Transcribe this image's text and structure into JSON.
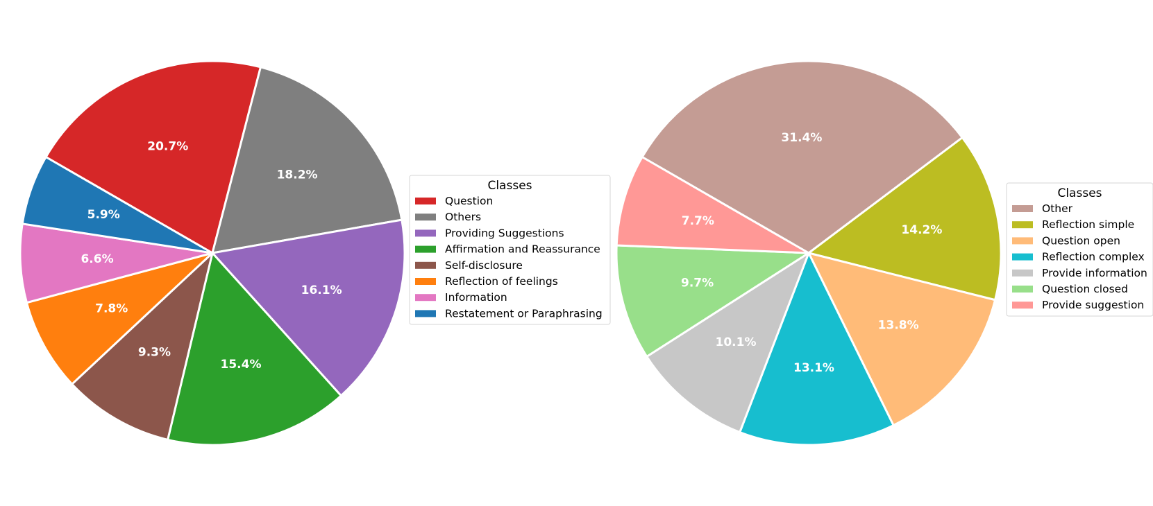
{
  "chart_data": [
    {
      "type": "pie",
      "legend_title": "Classes",
      "legend_position": "right",
      "start_angle_deg": 150,
      "direction": "clockwise",
      "slices": [
        {
          "label": "Question",
          "value": 20.7,
          "pct_label": "20.7%",
          "color": "#d62728"
        },
        {
          "label": "Others",
          "value": 18.2,
          "pct_label": "18.2%",
          "color": "#7f7f7f"
        },
        {
          "label": "Providing Suggestions",
          "value": 16.1,
          "pct_label": "16.1%",
          "color": "#9467bd"
        },
        {
          "label": "Affirmation and Reassurance",
          "value": 15.4,
          "pct_label": "15.4%",
          "color": "#2ca02c"
        },
        {
          "label": "Self-disclosure",
          "value": 9.3,
          "pct_label": "9.3%",
          "color": "#8c564b"
        },
        {
          "label": "Reflection of feelings",
          "value": 7.8,
          "pct_label": "7.8%",
          "color": "#ff7f0e"
        },
        {
          "label": "Information",
          "value": 6.6,
          "pct_label": "6.6%",
          "color": "#e377c2"
        },
        {
          "label": "Restatement or Paraphrasing",
          "value": 5.9,
          "pct_label": "5.9%",
          "color": "#1f77b4"
        }
      ]
    },
    {
      "type": "pie",
      "legend_title": "Classes",
      "legend_position": "right",
      "start_angle_deg": 150,
      "direction": "clockwise",
      "slices": [
        {
          "label": "Other",
          "value": 31.4,
          "pct_label": "31.4%",
          "color": "#c49c94"
        },
        {
          "label": "Reflection simple",
          "value": 14.2,
          "pct_label": "14.2%",
          "color": "#bcbd22"
        },
        {
          "label": "Question open",
          "value": 13.8,
          "pct_label": "13.8%",
          "color": "#ffbb78"
        },
        {
          "label": "Reflection complex",
          "value": 13.1,
          "pct_label": "13.1%",
          "color": "#17becf"
        },
        {
          "label": "Provide information",
          "value": 10.1,
          "pct_label": "10.1%",
          "color": "#c7c7c7"
        },
        {
          "label": "Question closed",
          "value": 9.7,
          "pct_label": "9.7%",
          "color": "#98df8a"
        },
        {
          "label": "Provide suggestion",
          "value": 7.7,
          "pct_label": "7.7%",
          "color": "#ff9896"
        }
      ]
    }
  ]
}
